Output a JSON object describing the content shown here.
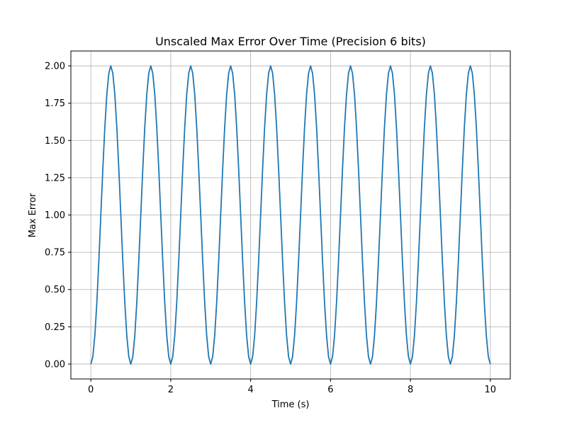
{
  "chart_data": {
    "type": "line",
    "title": "Unscaled Max Error Over Time (Precision 6 bits)",
    "xlabel": "Time (s)",
    "ylabel": "Max Error",
    "xlim": [
      -0.5,
      10.5
    ],
    "ylim": [
      -0.1,
      2.1
    ],
    "xticks": [
      0,
      2,
      4,
      6,
      8,
      10
    ],
    "xtick_labels": [
      "0",
      "2",
      "4",
      "6",
      "8",
      "10"
    ],
    "yticks": [
      0.0,
      0.25,
      0.5,
      0.75,
      1.0,
      1.25,
      1.5,
      1.75,
      2.0
    ],
    "ytick_labels": [
      "0.00",
      "0.25",
      "0.50",
      "0.75",
      "1.00",
      "1.25",
      "1.50",
      "1.75",
      "2.00"
    ],
    "grid": true,
    "series": [
      {
        "color": "#1f77b4",
        "x": [
          0,
          0.05,
          0.1,
          0.15,
          0.2,
          0.25,
          0.3,
          0.35,
          0.4,
          0.45,
          0.5,
          0.55,
          0.6,
          0.65,
          0.7,
          0.75,
          0.8,
          0.85,
          0.9,
          0.95,
          1.0,
          1.05,
          1.1,
          1.15,
          1.2,
          1.25,
          1.3,
          1.35,
          1.4,
          1.45,
          1.5,
          1.55,
          1.6,
          1.65,
          1.7,
          1.75,
          1.8,
          1.85,
          1.9,
          1.95,
          2.0,
          2.05,
          2.1,
          2.15,
          2.2,
          2.25,
          2.3,
          2.35,
          2.4,
          2.45,
          2.5,
          2.55,
          2.6,
          2.65,
          2.7,
          2.75,
          2.8,
          2.85,
          2.9,
          2.95,
          3.0,
          3.05,
          3.1,
          3.15,
          3.2,
          3.25,
          3.3,
          3.35,
          3.4,
          3.45,
          3.5,
          3.55,
          3.6,
          3.65,
          3.7,
          3.75,
          3.8,
          3.85,
          3.9,
          3.95,
          4.0,
          4.05,
          4.1,
          4.15,
          4.2,
          4.25,
          4.3,
          4.35,
          4.4,
          4.45,
          4.5,
          4.55,
          4.6,
          4.65,
          4.7,
          4.75,
          4.8,
          4.85,
          4.9,
          4.95,
          5.0,
          5.05,
          5.1,
          5.15,
          5.2,
          5.25,
          5.3,
          5.35,
          5.4,
          5.45,
          5.5,
          5.55,
          5.6,
          5.65,
          5.7,
          5.75,
          5.8,
          5.85,
          5.9,
          5.95,
          6.0,
          6.05,
          6.1,
          6.15,
          6.2,
          6.25,
          6.3,
          6.35,
          6.4,
          6.45,
          6.5,
          6.55,
          6.6,
          6.65,
          6.7,
          6.75,
          6.8,
          6.85,
          6.9,
          6.95,
          7.0,
          7.05,
          7.1,
          7.15,
          7.2,
          7.25,
          7.3,
          7.35,
          7.4,
          7.45,
          7.5,
          7.55,
          7.6,
          7.65,
          7.7,
          7.75,
          7.8,
          7.85,
          7.9,
          7.95,
          8.0,
          8.05,
          8.1,
          8.15,
          8.2,
          8.25,
          8.3,
          8.35,
          8.4,
          8.45,
          8.5,
          8.55,
          8.6,
          8.65,
          8.7,
          8.75,
          8.8,
          8.85,
          8.9,
          8.95,
          9.0,
          9.05,
          9.1,
          9.15,
          9.2,
          9.25,
          9.3,
          9.35,
          9.4,
          9.45,
          9.5,
          9.55,
          9.6,
          9.65,
          9.7,
          9.75,
          9.8,
          9.85,
          9.9,
          9.95,
          10.0
        ],
        "y": [
          0.0,
          0.049,
          0.191,
          0.412,
          0.691,
          1.0,
          1.309,
          1.588,
          1.809,
          1.951,
          2.0,
          1.951,
          1.809,
          1.588,
          1.309,
          1.0,
          0.691,
          0.412,
          0.191,
          0.049,
          0.0,
          0.049,
          0.191,
          0.412,
          0.691,
          1.0,
          1.309,
          1.588,
          1.809,
          1.951,
          2.0,
          1.951,
          1.809,
          1.588,
          1.309,
          1.0,
          0.691,
          0.412,
          0.191,
          0.049,
          0.0,
          0.049,
          0.191,
          0.412,
          0.691,
          1.0,
          1.309,
          1.588,
          1.809,
          1.951,
          2.0,
          1.951,
          1.809,
          1.588,
          1.309,
          1.0,
          0.691,
          0.412,
          0.191,
          0.049,
          0.0,
          0.049,
          0.191,
          0.412,
          0.691,
          1.0,
          1.309,
          1.588,
          1.809,
          1.951,
          2.0,
          1.951,
          1.809,
          1.588,
          1.309,
          1.0,
          0.691,
          0.412,
          0.191,
          0.049,
          0.0,
          0.049,
          0.191,
          0.412,
          0.691,
          1.0,
          1.309,
          1.588,
          1.809,
          1.951,
          2.0,
          1.951,
          1.809,
          1.588,
          1.309,
          1.0,
          0.691,
          0.412,
          0.191,
          0.049,
          0.0,
          0.049,
          0.191,
          0.412,
          0.691,
          1.0,
          1.309,
          1.588,
          1.809,
          1.951,
          2.0,
          1.951,
          1.809,
          1.588,
          1.309,
          1.0,
          0.691,
          0.412,
          0.191,
          0.049,
          0.0,
          0.049,
          0.191,
          0.412,
          0.691,
          1.0,
          1.309,
          1.588,
          1.809,
          1.951,
          2.0,
          1.951,
          1.809,
          1.588,
          1.309,
          1.0,
          0.691,
          0.412,
          0.191,
          0.049,
          0.0,
          0.049,
          0.191,
          0.412,
          0.691,
          1.0,
          1.309,
          1.588,
          1.809,
          1.951,
          2.0,
          1.951,
          1.809,
          1.588,
          1.309,
          1.0,
          0.691,
          0.412,
          0.191,
          0.049,
          0.0,
          0.049,
          0.191,
          0.412,
          0.691,
          1.0,
          1.309,
          1.588,
          1.809,
          1.951,
          2.0,
          1.951,
          1.809,
          1.588,
          1.309,
          1.0,
          0.691,
          0.412,
          0.191,
          0.049,
          0.0,
          0.049,
          0.191,
          0.412,
          0.691,
          1.0,
          1.309,
          1.588,
          1.809,
          1.951,
          2.0,
          1.951,
          1.809,
          1.588,
          1.309,
          1.0,
          0.691,
          0.412,
          0.191,
          0.049,
          0.0
        ]
      }
    ]
  }
}
